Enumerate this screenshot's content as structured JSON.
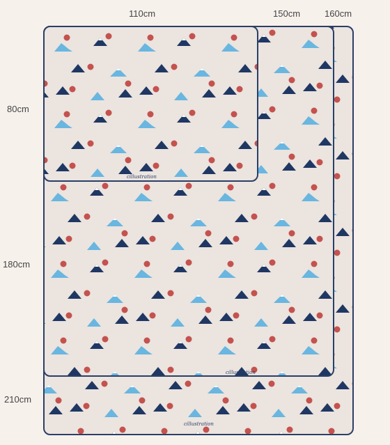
{
  "labels": {
    "w110": "110cm",
    "w150": "150cm",
    "w160": "160cm",
    "h80": "80cm",
    "h180": "180cm",
    "h210": "210cm"
  },
  "signature": "cillustration",
  "colors": {
    "background": "#f7f1ec",
    "rug": "#ebe4df",
    "outline": "#2a3f66",
    "navy": "#1f3763",
    "light_blue": "#69b6e0",
    "red": "#c4524e"
  }
}
